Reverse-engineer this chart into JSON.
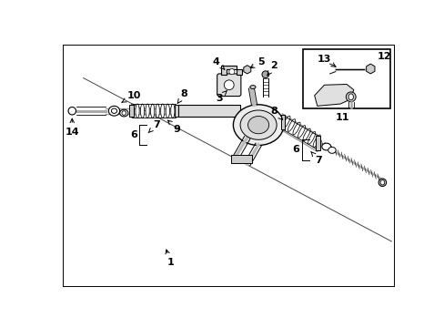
{
  "bg_color": "#ffffff",
  "line_color": "#000000",
  "gray_color": "#888888",
  "light_gray": "#cccccc",
  "fig_width": 4.89,
  "fig_height": 3.6,
  "dpi": 100
}
